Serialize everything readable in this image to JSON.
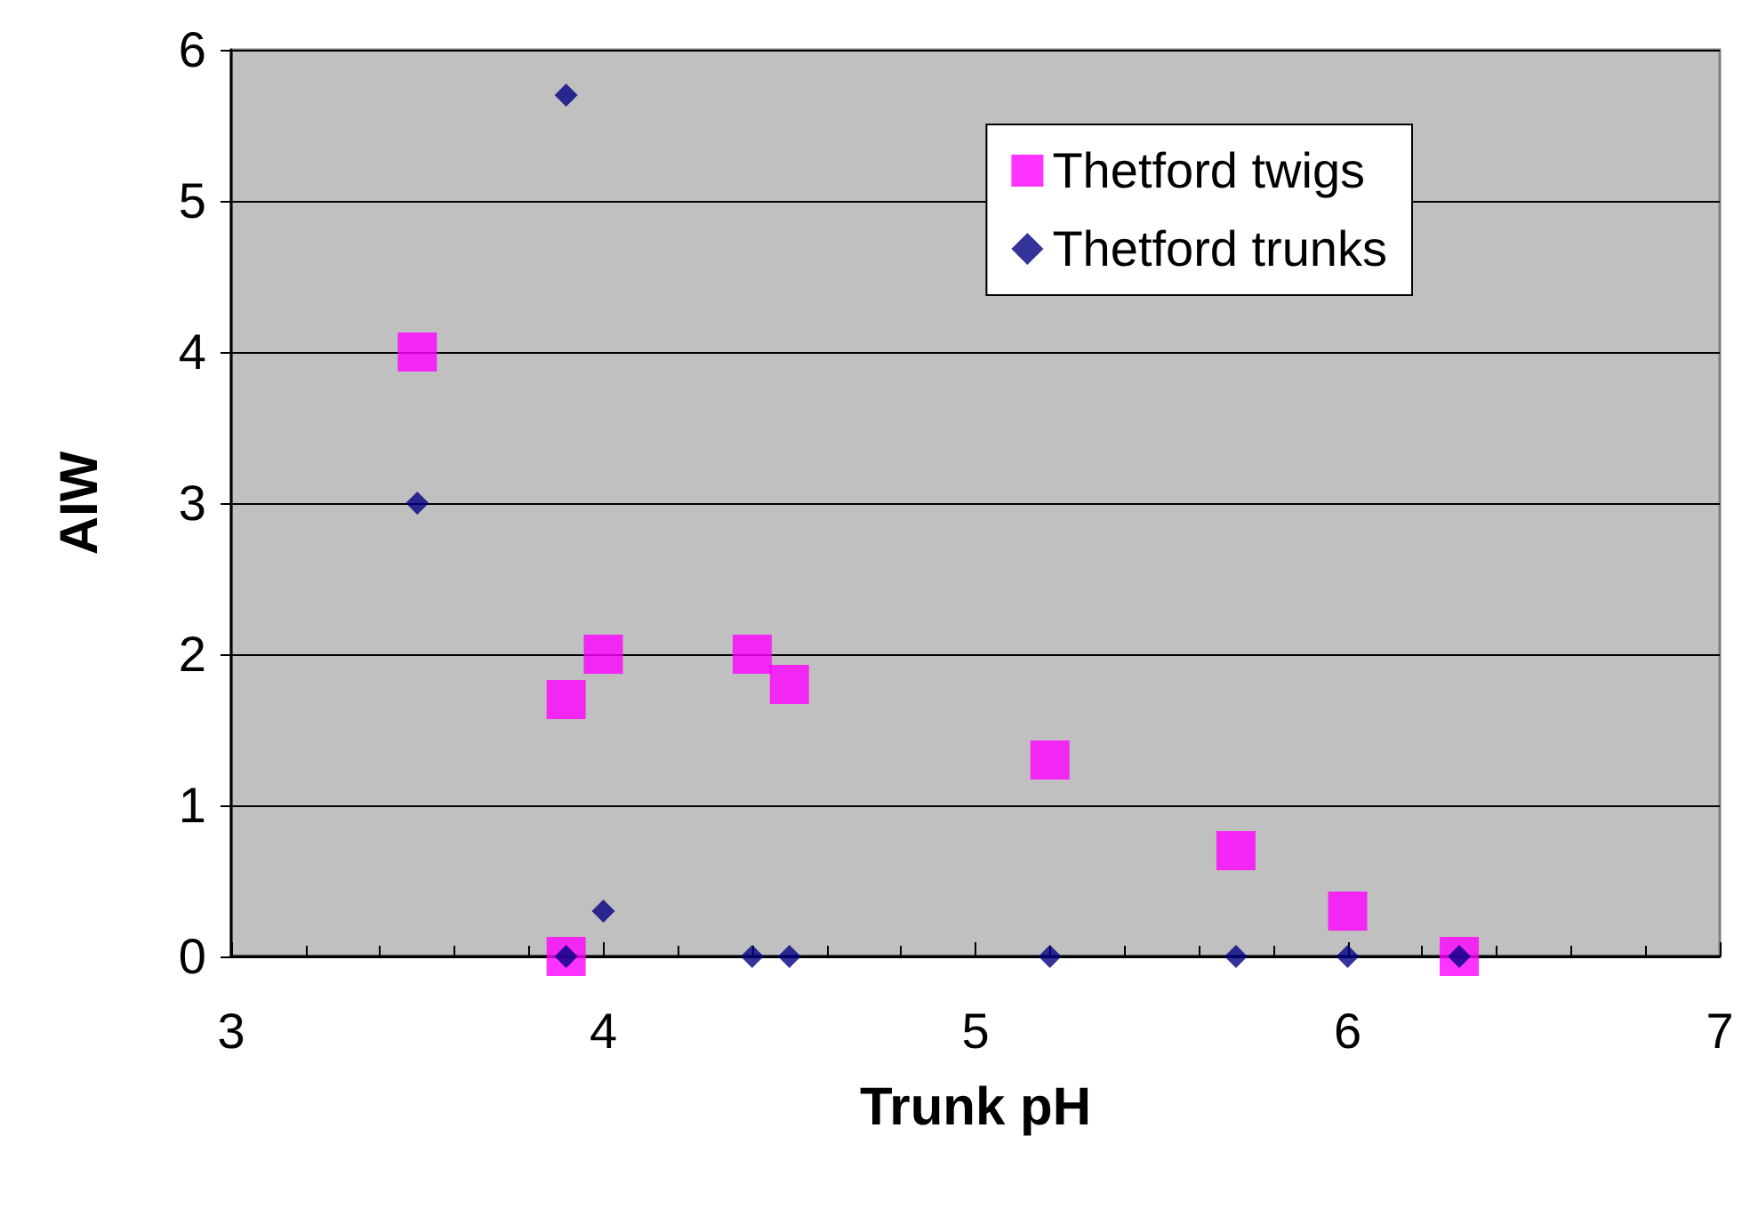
{
  "chart_data": {
    "type": "scatter",
    "xlabel": "Trunk pH",
    "ylabel": "AIW",
    "xlim": [
      3,
      7
    ],
    "xticks": [
      3,
      4,
      5,
      6,
      7
    ],
    "ylim": [
      0,
      6
    ],
    "yticks": [
      0,
      1,
      2,
      3,
      4,
      5,
      6
    ],
    "grid": "y",
    "legend": "top right",
    "series": [
      {
        "name": "Thetford twigs",
        "color": "#ff00ff",
        "marker": "square",
        "x": [
          3.5,
          3.9,
          3.9,
          4.0,
          4.4,
          4.5,
          5.2,
          5.7,
          6.0,
          6.3
        ],
        "values": [
          4.0,
          1.7,
          0,
          2.0,
          2.0,
          1.8,
          1.3,
          0.7,
          0.3,
          0
        ]
      },
      {
        "name": "Thetford trunks",
        "color": "#000080",
        "marker": "diamond",
        "x": [
          3.9,
          3.5,
          4.0,
          3.9,
          4.4,
          4.5,
          5.2,
          5.7,
          6.0,
          6.3
        ],
        "values": [
          5.7,
          3.0,
          0.3,
          0,
          0,
          0,
          0,
          0,
          0,
          0
        ]
      }
    ]
  }
}
